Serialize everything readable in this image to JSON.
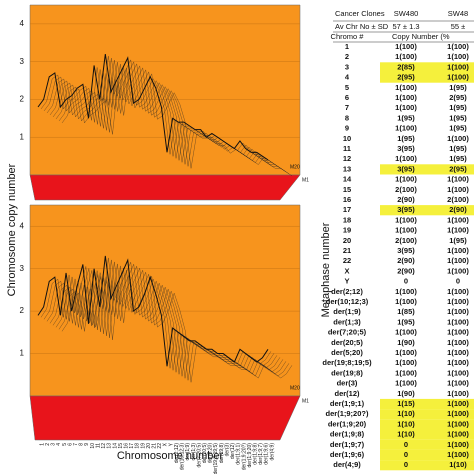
{
  "chart_data": [
    {
      "type": "line",
      "series_label_top": "M20",
      "series_label_bottom": "M1",
      "ylim": [
        0,
        4.5
      ],
      "yticks": [
        1,
        2,
        3,
        4
      ],
      "color": "#111111",
      "values": [
        1.8,
        2.0,
        2.6,
        2.7,
        1.8,
        2.0,
        2.1,
        2.3,
        2.4,
        1.5,
        2.9,
        2.0,
        3.2,
        2.2,
        2.5,
        2.8,
        3.1,
        1.9,
        2.0,
        2.3,
        2.6,
        2.3,
        1.8,
        0.6,
        1.5,
        1.4,
        1.4,
        1.3,
        1.2,
        1.2,
        1.0,
        1.1,
        1.0,
        0.9,
        0.8,
        0.7,
        0.9,
        0.7,
        0.6,
        0.6,
        0.5,
        0.4
      ]
    },
    {
      "type": "line",
      "series_label_top": "M20",
      "series_label_bottom": "M1",
      "ylim": [
        0,
        4.5
      ],
      "yticks": [
        1,
        2,
        3,
        4
      ],
      "color": "#111111",
      "x_label": "Chromosome number",
      "categories": [
        "1",
        "2",
        "3",
        "4",
        "5",
        "6",
        "7",
        "8",
        "9",
        "10",
        "11",
        "12",
        "13",
        "14",
        "15",
        "16",
        "17",
        "18",
        "19",
        "20",
        "21",
        "22",
        "X",
        "Y",
        "der(2;12)",
        "der(10;12;3)",
        "der(1;9)",
        "der(1;3)",
        "der(7;20;5)",
        "der(20;5)",
        "der(5;20)",
        "der(19;8;19;5)",
        "der(19;8)",
        "der(3)",
        "der(12)",
        "der(1;9;1)",
        "der(1;9;20?)",
        "der(1;9;20)",
        "der(1;9;8)",
        "der(1;9;7)",
        "der(1;9;6)",
        "der(4;9)"
      ],
      "values": [
        1.9,
        2.1,
        2.7,
        2.8,
        1.9,
        2.9,
        2.0,
        2.6,
        3.1,
        1.7,
        3.0,
        2.1,
        3.3,
        2.3,
        2.6,
        2.9,
        3.2,
        2.0,
        2.1,
        2.4,
        2.8,
        2.4,
        1.9,
        0.7,
        1.6,
        1.5,
        1.4,
        1.3,
        1.3,
        1.2,
        1.1,
        1.1,
        1.0,
        1.0,
        0.9,
        0.8,
        1.1,
        1.0,
        0.9,
        0.8,
        0.9,
        1.1
      ]
    }
  ],
  "figure": {
    "y_label": "Chromosome copy number",
    "right_label": "Metaphase number"
  },
  "table": {
    "header": [
      "Cancer Clones",
      "SW480",
      "SW48"
    ],
    "subheader": [
      "Av Chr No ± SD",
      "57 ± 1.3",
      "55 ±"
    ],
    "colheader": [
      "Chromo #",
      "Copy Number (%"
    ],
    "highlight_color": "#f5f03c",
    "highlighted_rows": [
      2,
      3,
      12,
      16,
      35,
      36,
      37,
      38,
      39,
      40,
      41
    ],
    "rows": [
      [
        "1",
        "1(100)",
        "1(100)"
      ],
      [
        "2",
        "1(100)",
        "1(100)"
      ],
      [
        "3",
        "2(85)",
        "1(100)"
      ],
      [
        "4",
        "2(95)",
        "1(100)"
      ],
      [
        "5",
        "1(100)",
        "1(95)"
      ],
      [
        "6",
        "1(100)",
        "2(95)"
      ],
      [
        "7",
        "1(100)",
        "1(95)"
      ],
      [
        "8",
        "1(95)",
        "1(95)"
      ],
      [
        "9",
        "1(100)",
        "1(95)"
      ],
      [
        "10",
        "1(95)",
        "1(100)"
      ],
      [
        "11",
        "3(95)",
        "1(95)"
      ],
      [
        "12",
        "1(100)",
        "1(95)"
      ],
      [
        "13",
        "3(95)",
        "2(95)"
      ],
      [
        "14",
        "1(100)",
        "1(100)"
      ],
      [
        "15",
        "2(100)",
        "1(100)"
      ],
      [
        "16",
        "2(90)",
        "2(100)"
      ],
      [
        "17",
        "3(95)",
        "2(90)"
      ],
      [
        "18",
        "1(100)",
        "1(100)"
      ],
      [
        "19",
        "1(100)",
        "1(100)"
      ],
      [
        "20",
        "2(100)",
        "1(95)"
      ],
      [
        "21",
        "3(95)",
        "1(100)"
      ],
      [
        "22",
        "2(90)",
        "1(100)"
      ],
      [
        "X",
        "2(90)",
        "1(100)"
      ],
      [
        "Y",
        "0",
        "0"
      ],
      [
        "der(2;12)",
        "1(100)",
        "1(100)"
      ],
      [
        "der(10;12;3)",
        "1(100)",
        "1(100)"
      ],
      [
        "der(1;9)",
        "1(85)",
        "1(100)"
      ],
      [
        "der(1;3)",
        "1(95)",
        "1(100)"
      ],
      [
        "der(7;20;5)",
        "1(100)",
        "1(100)"
      ],
      [
        "der(20;5)",
        "1(90)",
        "1(100)"
      ],
      [
        "der(5;20)",
        "1(100)",
        "1(100)"
      ],
      [
        "der(19;8;19;5)",
        "1(100)",
        "1(100)"
      ],
      [
        "der(19;8)",
        "1(100)",
        "1(100)"
      ],
      [
        "der(3)",
        "1(100)",
        "1(100)"
      ],
      [
        "der(12)",
        "1(90)",
        "1(100)"
      ],
      [
        "der(1;9;1)",
        "1(15)",
        "1(100)"
      ],
      [
        "der(1;9;20?)",
        "1(10)",
        "1(100)"
      ],
      [
        "der(1;9;20)",
        "1(10)",
        "1(100)"
      ],
      [
        "der(1;9;8)",
        "1(10)",
        "1(100)"
      ],
      [
        "der(1;9;7)",
        "0",
        "1(100)"
      ],
      [
        "der(1;9;6)",
        "0",
        "1(100)"
      ],
      [
        "der(4;9)",
        "0",
        "1(10)"
      ]
    ]
  }
}
